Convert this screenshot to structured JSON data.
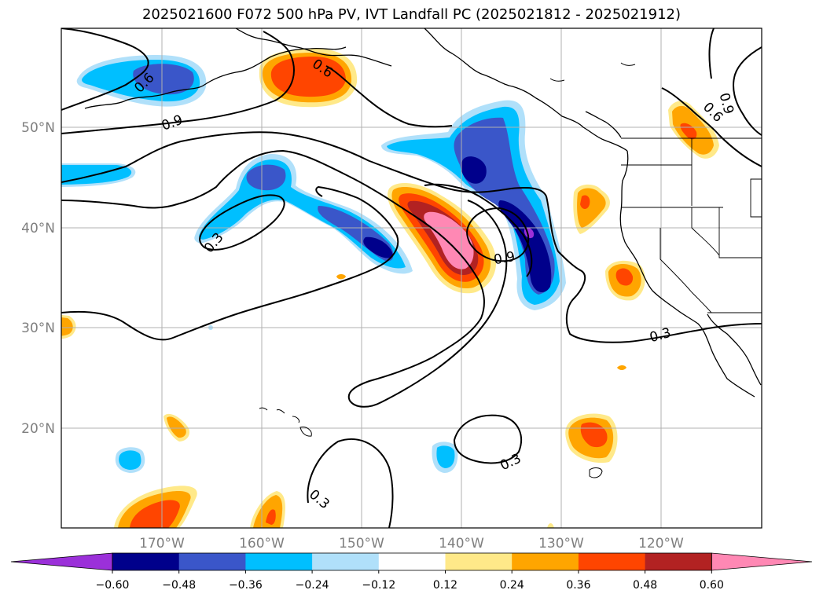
{
  "title": "2025021600 F072 500 hPa PV, IVT Landfall PC (2025021812 - 2025021912)",
  "lat_labels": [
    "50°N",
    "40°N",
    "30°N",
    "20°N"
  ],
  "lon_labels": [
    "170°W",
    "160°W",
    "150°W",
    "140°W",
    "130°W",
    "120°W"
  ],
  "contour_labels": [
    "0.6",
    "0.9",
    "0.6",
    "0.9",
    "0.3",
    "0.9",
    "0.6",
    "0.3",
    "0.3",
    "0.3"
  ],
  "colorbar": {
    "ticks": [
      "−0.60",
      "−0.48",
      "−0.36",
      "−0.24",
      "−0.12",
      "0.12",
      "0.24",
      "0.36",
      "0.48",
      "0.60"
    ],
    "colors": [
      "#9b30d9",
      "#00008b",
      "#3a56c9",
      "#00bfff",
      "#b0e0fa",
      "#ffffff",
      "#ffe989",
      "#ffa500",
      "#ff4500",
      "#b22222",
      "#ff88b4"
    ]
  },
  "colors": {
    "neg_strong": "#00008b",
    "neg_mid": "#3a56c9",
    "neg_light": "#00bfff",
    "neg_pale": "#b0e0fa",
    "pos_pale": "#ffe989",
    "pos_light": "#ffa500",
    "pos_mid": "#ff4500",
    "pos_strong": "#b22222",
    "pos_max": "#ff88b4"
  }
}
